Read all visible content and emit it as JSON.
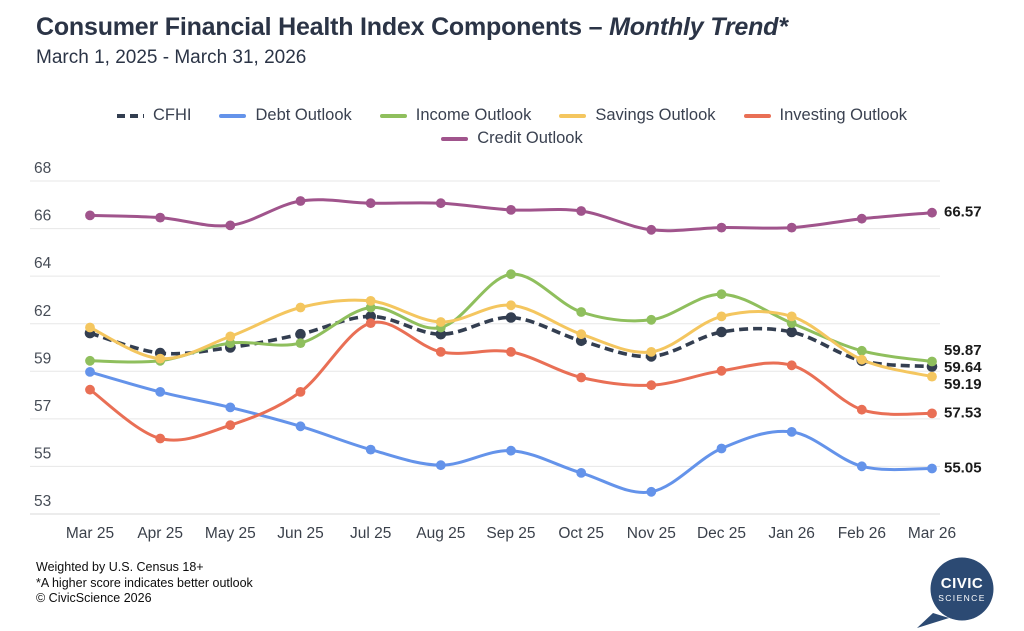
{
  "chart_data": {
    "type": "line",
    "title_main": "Consumer Financial Health Index Components",
    "title_separator": "–",
    "title_emphasis": "Monthly Trend*",
    "subtitle": "March 1, 2025 - March 31, 2026",
    "x_categories": [
      "Mar 25",
      "Apr 25",
      "May 25",
      "Jun 25",
      "Jul 25",
      "Aug 25",
      "Sep 25",
      "Oct 25",
      "Nov 25",
      "Dec 25",
      "Jan 26",
      "Feb 26",
      "Mar 26"
    ],
    "y_ticks": [
      "68",
      "66",
      "64",
      "62",
      "59",
      "57",
      "55",
      "53"
    ],
    "y_range": [
      53,
      68
    ],
    "grid": "horizontal",
    "legend_position": "top",
    "series": [
      {
        "name": "CFHI",
        "color": "#333E50",
        "dashed": true,
        "end_label": "59.64",
        "values": [
          61.15,
          60.25,
          60.5,
          61.1,
          61.9,
          61.1,
          61.85,
          60.8,
          60.1,
          61.2,
          61.2,
          59.9,
          59.64
        ]
      },
      {
        "name": "Debt Outlook",
        "color": "#6493EA",
        "dashed": false,
        "end_label": "55.05",
        "values": [
          59.4,
          58.5,
          57.8,
          56.95,
          55.9,
          55.2,
          55.85,
          54.85,
          54.0,
          55.95,
          56.7,
          55.15,
          55.05
        ]
      },
      {
        "name": "Income Outlook",
        "color": "#8FBF5D",
        "dashed": false,
        "end_label": "59.87",
        "values": [
          59.9,
          59.9,
          60.7,
          60.7,
          62.3,
          61.4,
          63.8,
          62.1,
          61.75,
          62.9,
          61.6,
          60.35,
          59.87
        ]
      },
      {
        "name": "Savings Outlook",
        "color": "#F4C65F",
        "dashed": false,
        "end_label": "59.19",
        "values": [
          61.4,
          60.0,
          61.0,
          62.3,
          62.6,
          61.65,
          62.4,
          61.1,
          60.3,
          61.9,
          61.9,
          59.95,
          59.19
        ]
      },
      {
        "name": "Investing Outlook",
        "color": "#E96F55",
        "dashed": false,
        "end_label": "57.53",
        "values": [
          58.6,
          56.4,
          57.0,
          58.5,
          61.6,
          60.3,
          60.3,
          59.15,
          58.8,
          59.45,
          59.7,
          57.7,
          57.53
        ]
      },
      {
        "name": "Credit Outlook",
        "color": "#A0548C",
        "dashed": false,
        "end_label": "66.57",
        "values": [
          66.45,
          66.35,
          66.0,
          67.1,
          67.0,
          67.0,
          66.7,
          66.65,
          65.8,
          65.9,
          65.9,
          66.3,
          66.57
        ]
      }
    ]
  },
  "footer": {
    "lines": [
      "Weighted by U.S. Census 18+",
      "*A higher score indicates better outlook",
      "© CivicScience 2026"
    ]
  },
  "logo": {
    "line1": "CIVIC",
    "line2": "SCIENCE",
    "color": "#2C4A73"
  }
}
